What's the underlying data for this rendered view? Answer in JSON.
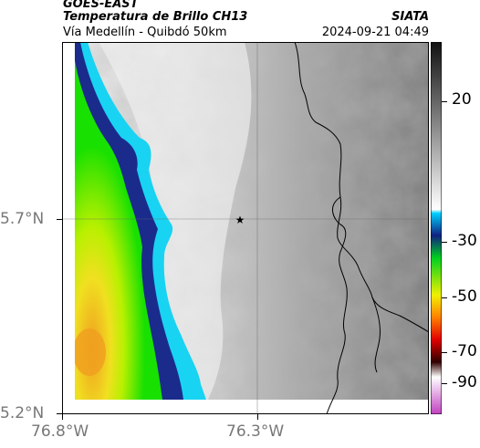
{
  "header": {
    "satellite": "GOES-EAST",
    "product": "Temperatura de Brillo CH13",
    "route": "Vía Medellín - Quibdó 50km",
    "organization": "SIATA",
    "timestamp": "2024-09-21 04:49"
  },
  "map": {
    "latitude_labels": [
      "5.7°N",
      "5.2°N"
    ],
    "longitude_labels": [
      "76.8°W",
      "76.3°W"
    ],
    "lat_range": [
      5.2,
      5.9
    ],
    "lon_range": [
      -76.8,
      -76.1
    ],
    "marker_icon": "star-icon",
    "gridlines": true,
    "colors": {
      "background_gray": "#7a7a7a",
      "cloud_light": "#f2f2f2",
      "cold_blue": "#1a2b8c",
      "cyan": "#19d3f2",
      "green": "#18e000",
      "yellow_green": "#b8f000",
      "yellow": "#f0e020",
      "orange": "#f0a020",
      "border_line": "#000000"
    }
  },
  "colorbar": {
    "tick_labels": [
      "20",
      "-30",
      "-50",
      "-70",
      "-90"
    ],
    "tick_values": [
      20,
      -30,
      -50,
      -70,
      -90
    ],
    "range": [
      -95,
      40
    ],
    "colors": {
      "gray_top": "#111111",
      "gray_bottom": "#ffffff",
      "cyan": "#00d0ff",
      "blue": "#102080",
      "green": "#00d020",
      "yellow": "#f0f000",
      "orange": "#ff8000",
      "red": "#e00000",
      "dark": "#300000",
      "magenta": "#c040c0"
    }
  }
}
